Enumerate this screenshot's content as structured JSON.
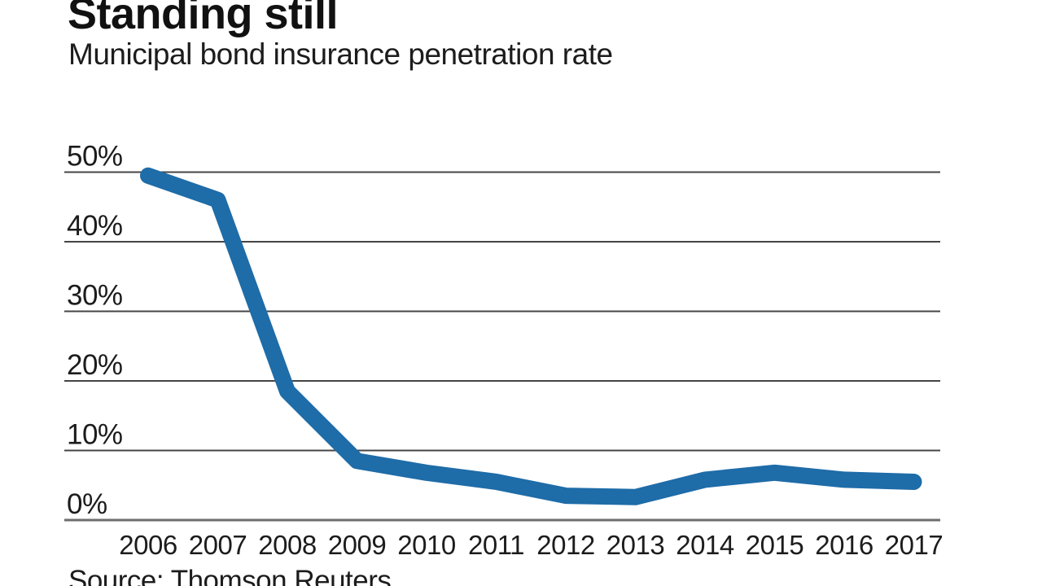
{
  "header": {
    "title": "Standing still",
    "subtitle": "Municipal bond insurance penetration rate"
  },
  "footer": {
    "source": "Source: Thomson Reuters"
  },
  "chart_data": {
    "type": "line",
    "title": "Standing still",
    "subtitle": "Municipal bond insurance penetration rate",
    "x": [
      "2006",
      "2007",
      "2008",
      "2009",
      "2010",
      "2011",
      "2012",
      "2013",
      "2014",
      "2015",
      "2016",
      "2017"
    ],
    "series": [
      {
        "name": "Municipal bond insurance penetration rate",
        "values": [
          49.5,
          46,
          18.5,
          8.5,
          6.8,
          5.5,
          3.5,
          3.3,
          5.8,
          6.8,
          5.8,
          5.5
        ]
      }
    ],
    "ylabel": "",
    "xlabel": "",
    "ylim": [
      0,
      50
    ],
    "ytick_step": 10,
    "ytick_labels": [
      "0%",
      "10%",
      "20%",
      "30%",
      "40%",
      "50%"
    ],
    "grid": "horizontal",
    "legend": "none",
    "line_color": "#1e6ca8",
    "grid_color": "#454545",
    "text_color": "#1c1c1c",
    "source": "Source: Thomson Reuters"
  }
}
